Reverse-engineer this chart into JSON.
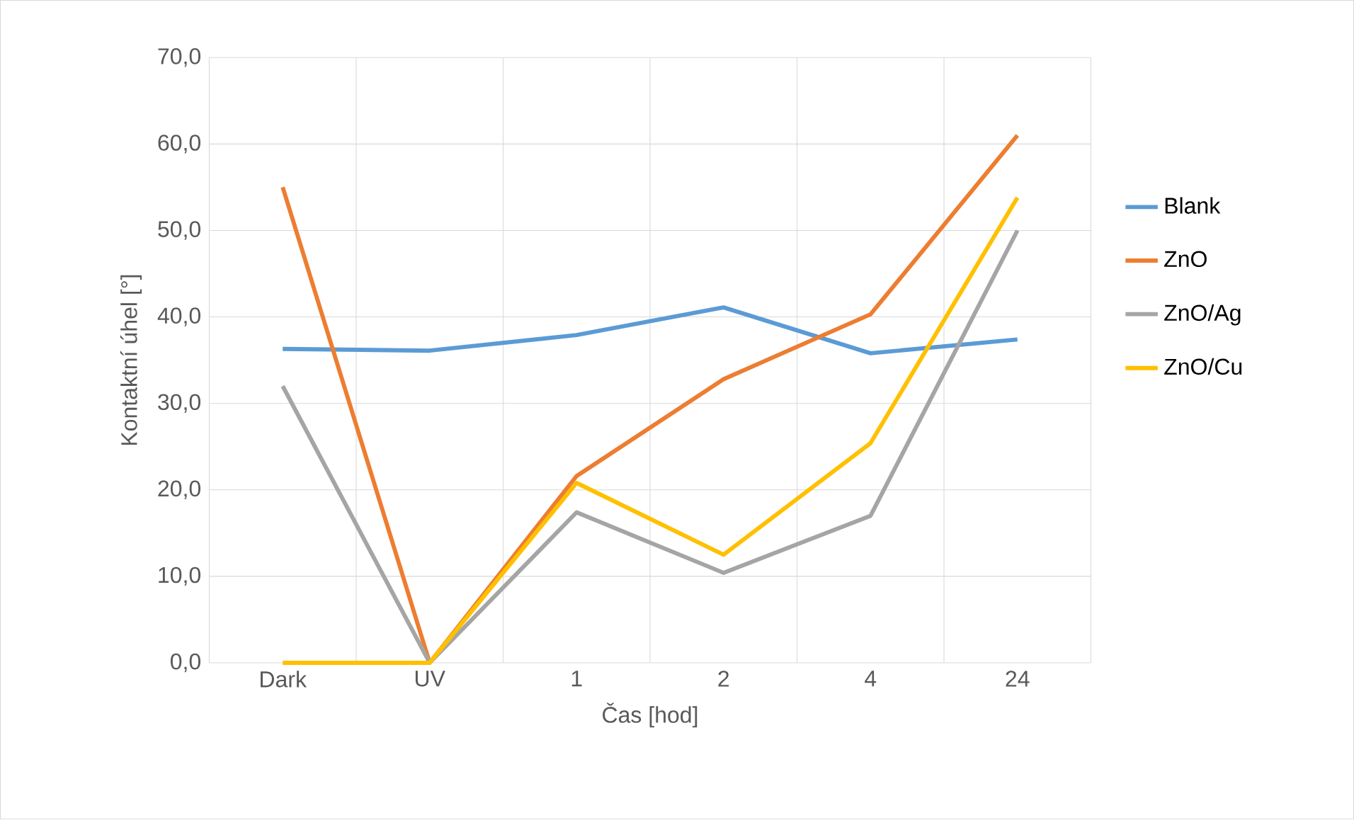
{
  "chart_data": {
    "type": "line",
    "xlabel": "Čas [hod]",
    "ylabel": "Kontaktní úhel [°]",
    "categories": [
      "Dark",
      "UV",
      "1",
      "2",
      "4",
      "24"
    ],
    "series": [
      {
        "name": "Blank",
        "color": "#5b9bd5",
        "values": [
          36.3,
          36.1,
          37.9,
          41.1,
          35.8,
          37.4
        ]
      },
      {
        "name": "ZnO",
        "color": "#ed7d31",
        "values": [
          55.0,
          0.0,
          21.6,
          32.8,
          40.3,
          61.0
        ]
      },
      {
        "name": "ZnO/Ag",
        "color": "#a5a5a5",
        "values": [
          32.0,
          0.0,
          17.4,
          10.4,
          17.0,
          50.0
        ]
      },
      {
        "name": "ZnO/Cu",
        "color": "#ffc000",
        "values": [
          0.0,
          0.0,
          20.8,
          12.5,
          25.4,
          53.8
        ]
      }
    ],
    "ylim": [
      0,
      70
    ],
    "yticks": [
      {
        "value": 0,
        "label": "0,0"
      },
      {
        "value": 10,
        "label": "10,0"
      },
      {
        "value": 20,
        "label": "20,0"
      },
      {
        "value": 30,
        "label": "30,0"
      },
      {
        "value": 40,
        "label": "40,0"
      },
      {
        "value": 50,
        "label": "50,0"
      },
      {
        "value": 60,
        "label": "60,0"
      },
      {
        "value": 70,
        "label": "70,0"
      }
    ],
    "grid": true,
    "legend": "right",
    "marker": "none",
    "line_style": "solid"
  }
}
